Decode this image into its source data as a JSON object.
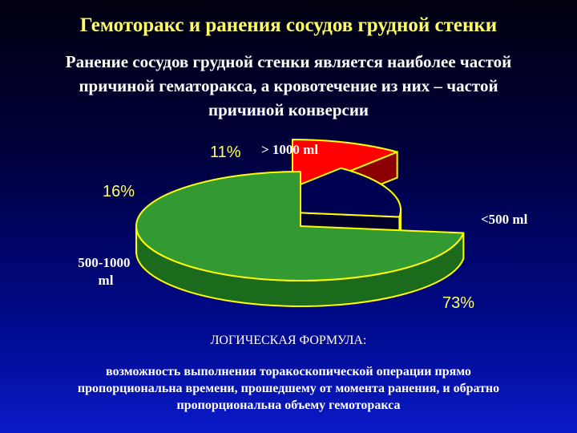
{
  "slide": {
    "title": "Гемоторакс и ранения сосудов грудной стенки",
    "subtitle_lines": [
      "Ранение сосудов грудной стенки является наиболее частой",
      "причиной гематоракса, а кровотечение из них – частой",
      "причиной конверсии"
    ],
    "formula_heading": "ЛОГИЧЕСКАЯ ФОРМУЛА:",
    "formula_lines": [
      "возможность выполнения торакоскопической операции прямо",
      "пропорциональна времени, прошедшему от момента ранения, и обратно",
      "пропорциональна объему гемоторакса"
    ]
  },
  "colors": {
    "title": "#ffff66",
    "percent_label": "#ffff66",
    "outline": "#ffff00"
  },
  "chart_data": {
    "type": "pie",
    "title": "",
    "slices": [
      {
        "percent_label": "11%",
        "category_label": "> 1000 ml",
        "value": 11,
        "color": "#ff0000",
        "side_color": "#8b0000"
      },
      {
        "percent_label": "16%",
        "category_label": "500-1000 ml",
        "value": 16,
        "color": "#000050",
        "side_color": "#000028"
      },
      {
        "percent_label": "73%",
        "category_label": "<500 ml",
        "value": 73,
        "color": "#339933",
        "side_color": "#1c6b1c"
      }
    ]
  }
}
